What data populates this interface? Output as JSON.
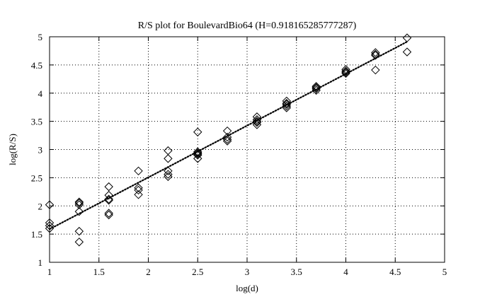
{
  "chart_data": {
    "type": "scatter",
    "title": "R/S plot for BoulevardBio64 (H=0.918165285777287)",
    "xlabel": "log(d)",
    "ylabel": "log(R/S)",
    "xlim": [
      1,
      5
    ],
    "ylim": [
      1,
      5
    ],
    "xticks": [
      1,
      1.5,
      2,
      2.5,
      3,
      3.5,
      4,
      4.5,
      5
    ],
    "yticks": [
      1,
      1.5,
      2,
      2.5,
      3,
      3.5,
      4,
      4.5,
      5
    ],
    "xtick_labels": [
      "1",
      "1.5",
      "2",
      "2.5",
      "3",
      "3.5",
      "4",
      "4.5",
      "5"
    ],
    "ytick_labels": [
      "1",
      "1.5",
      "2",
      "2.5",
      "3",
      "3.5",
      "4",
      "4.5",
      "5"
    ],
    "grid": true,
    "marker": "diamond",
    "points": [
      {
        "x": 1.0,
        "y": 2.02
      },
      {
        "x": 1.0,
        "y": 1.7
      },
      {
        "x": 1.0,
        "y": 1.65
      },
      {
        "x": 1.0,
        "y": 1.6
      },
      {
        "x": 1.3,
        "y": 2.07
      },
      {
        "x": 1.3,
        "y": 2.05
      },
      {
        "x": 1.3,
        "y": 2.02
      },
      {
        "x": 1.3,
        "y": 1.9
      },
      {
        "x": 1.3,
        "y": 1.55
      },
      {
        "x": 1.3,
        "y": 1.36
      },
      {
        "x": 1.6,
        "y": 2.34
      },
      {
        "x": 1.6,
        "y": 2.19
      },
      {
        "x": 1.6,
        "y": 2.12
      },
      {
        "x": 1.6,
        "y": 2.1
      },
      {
        "x": 1.6,
        "y": 1.87
      },
      {
        "x": 1.6,
        "y": 1.84
      },
      {
        "x": 1.9,
        "y": 2.62
      },
      {
        "x": 1.9,
        "y": 2.32
      },
      {
        "x": 1.9,
        "y": 2.28
      },
      {
        "x": 1.9,
        "y": 2.2
      },
      {
        "x": 2.2,
        "y": 2.98
      },
      {
        "x": 2.2,
        "y": 2.84
      },
      {
        "x": 2.2,
        "y": 2.62
      },
      {
        "x": 2.2,
        "y": 2.56
      },
      {
        "x": 2.2,
        "y": 2.52
      },
      {
        "x": 2.5,
        "y": 3.31
      },
      {
        "x": 2.5,
        "y": 2.96
      },
      {
        "x": 2.5,
        "y": 2.94
      },
      {
        "x": 2.5,
        "y": 2.92
      },
      {
        "x": 2.5,
        "y": 2.9
      },
      {
        "x": 2.5,
        "y": 2.84
      },
      {
        "x": 2.8,
        "y": 3.33
      },
      {
        "x": 2.8,
        "y": 3.22
      },
      {
        "x": 2.8,
        "y": 3.18
      },
      {
        "x": 2.8,
        "y": 3.15
      },
      {
        "x": 3.1,
        "y": 3.58
      },
      {
        "x": 3.1,
        "y": 3.53
      },
      {
        "x": 3.1,
        "y": 3.5
      },
      {
        "x": 3.1,
        "y": 3.48
      },
      {
        "x": 3.1,
        "y": 3.44
      },
      {
        "x": 3.4,
        "y": 3.86
      },
      {
        "x": 3.4,
        "y": 3.82
      },
      {
        "x": 3.4,
        "y": 3.8
      },
      {
        "x": 3.4,
        "y": 3.77
      },
      {
        "x": 3.4,
        "y": 3.74
      },
      {
        "x": 3.7,
        "y": 4.12
      },
      {
        "x": 3.7,
        "y": 4.1
      },
      {
        "x": 3.7,
        "y": 4.08
      },
      {
        "x": 3.7,
        "y": 4.05
      },
      {
        "x": 4.0,
        "y": 4.42
      },
      {
        "x": 4.0,
        "y": 4.39
      },
      {
        "x": 4.0,
        "y": 4.37
      },
      {
        "x": 4.0,
        "y": 4.35
      },
      {
        "x": 4.3,
        "y": 4.72
      },
      {
        "x": 4.3,
        "y": 4.69
      },
      {
        "x": 4.3,
        "y": 4.67
      },
      {
        "x": 4.3,
        "y": 4.41
      },
      {
        "x": 4.62,
        "y": 4.98
      },
      {
        "x": 4.62,
        "y": 4.73
      }
    ],
    "fit_line": {
      "style": "dotted",
      "slope": 0.918165285777287,
      "x_range": [
        1,
        4.62
      ]
    }
  }
}
